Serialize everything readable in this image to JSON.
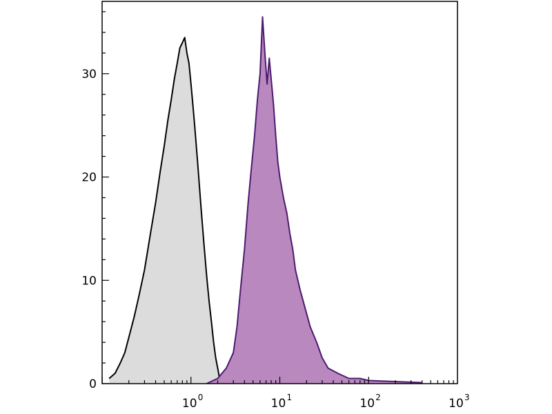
{
  "chart_data": {
    "type": "area",
    "title": "",
    "xlabel": "",
    "ylabel": "",
    "x_scale": "log",
    "xlim": [
      0.1,
      1000
    ],
    "ylim": [
      0,
      37
    ],
    "x_ticks": [
      {
        "value": 1,
        "base": "10",
        "exp": "0"
      },
      {
        "value": 10,
        "base": "10",
        "exp": "1"
      },
      {
        "value": 100,
        "base": "10",
        "exp": "2"
      },
      {
        "value": 1000,
        "base": "10",
        "exp": "3"
      }
    ],
    "y_ticks": [
      {
        "value": 0,
        "label": "0"
      },
      {
        "value": 10,
        "label": "10"
      },
      {
        "value": 20,
        "label": "20"
      },
      {
        "value": 30,
        "label": "30"
      }
    ],
    "grid": false,
    "legend": "none",
    "series": [
      {
        "fill": "#dcdcdc",
        "line": "#000000",
        "x": [
          0.12,
          0.14,
          0.16,
          0.18,
          0.2,
          0.23,
          0.26,
          0.3,
          0.35,
          0.4,
          0.45,
          0.5,
          0.55,
          0.6,
          0.65,
          0.7,
          0.75,
          0.8,
          0.85,
          0.9,
          0.95,
          1.0,
          1.05,
          1.1,
          1.2,
          1.3,
          1.4,
          1.5,
          1.6,
          1.7,
          1.8,
          1.9,
          2.0,
          2.1
        ],
        "y": [
          0.5,
          1.0,
          2.0,
          3.0,
          4.5,
          6.5,
          8.5,
          11.0,
          14.5,
          17.5,
          20.5,
          23.0,
          25.5,
          27.5,
          29.5,
          31.0,
          32.5,
          33.0,
          33.5,
          32.0,
          31.0,
          29.0,
          27.0,
          25.0,
          21.0,
          17.0,
          13.5,
          10.5,
          8.0,
          6.0,
          4.0,
          2.5,
          1.5,
          0.5
        ]
      },
      {
        "fill": "#b988be",
        "line": "#4b1a6e",
        "x": [
          1.5,
          2.0,
          2.5,
          3.0,
          3.3,
          3.6,
          4.0,
          4.4,
          4.8,
          5.2,
          5.6,
          6.0,
          6.4,
          6.8,
          7.2,
          7.6,
          8.0,
          8.5,
          9.0,
          9.5,
          10.0,
          11.0,
          12.0,
          13.0,
          14.0,
          15.0,
          17.0,
          19.0,
          22.0,
          26.0,
          30.0,
          35.0,
          45.0,
          60.0,
          80.0,
          100.0,
          200.0,
          400.0
        ],
        "y": [
          0.0,
          0.5,
          1.5,
          3.0,
          5.5,
          9.0,
          13.0,
          17.5,
          21.0,
          24.0,
          27.5,
          30.0,
          35.5,
          32.0,
          29.0,
          31.5,
          29.5,
          27.0,
          24.0,
          21.5,
          20.0,
          18.0,
          16.5,
          14.5,
          13.0,
          11.0,
          9.0,
          7.5,
          5.5,
          4.0,
          2.5,
          1.5,
          1.0,
          0.5,
          0.5,
          0.3,
          0.2,
          0.1
        ]
      }
    ]
  }
}
